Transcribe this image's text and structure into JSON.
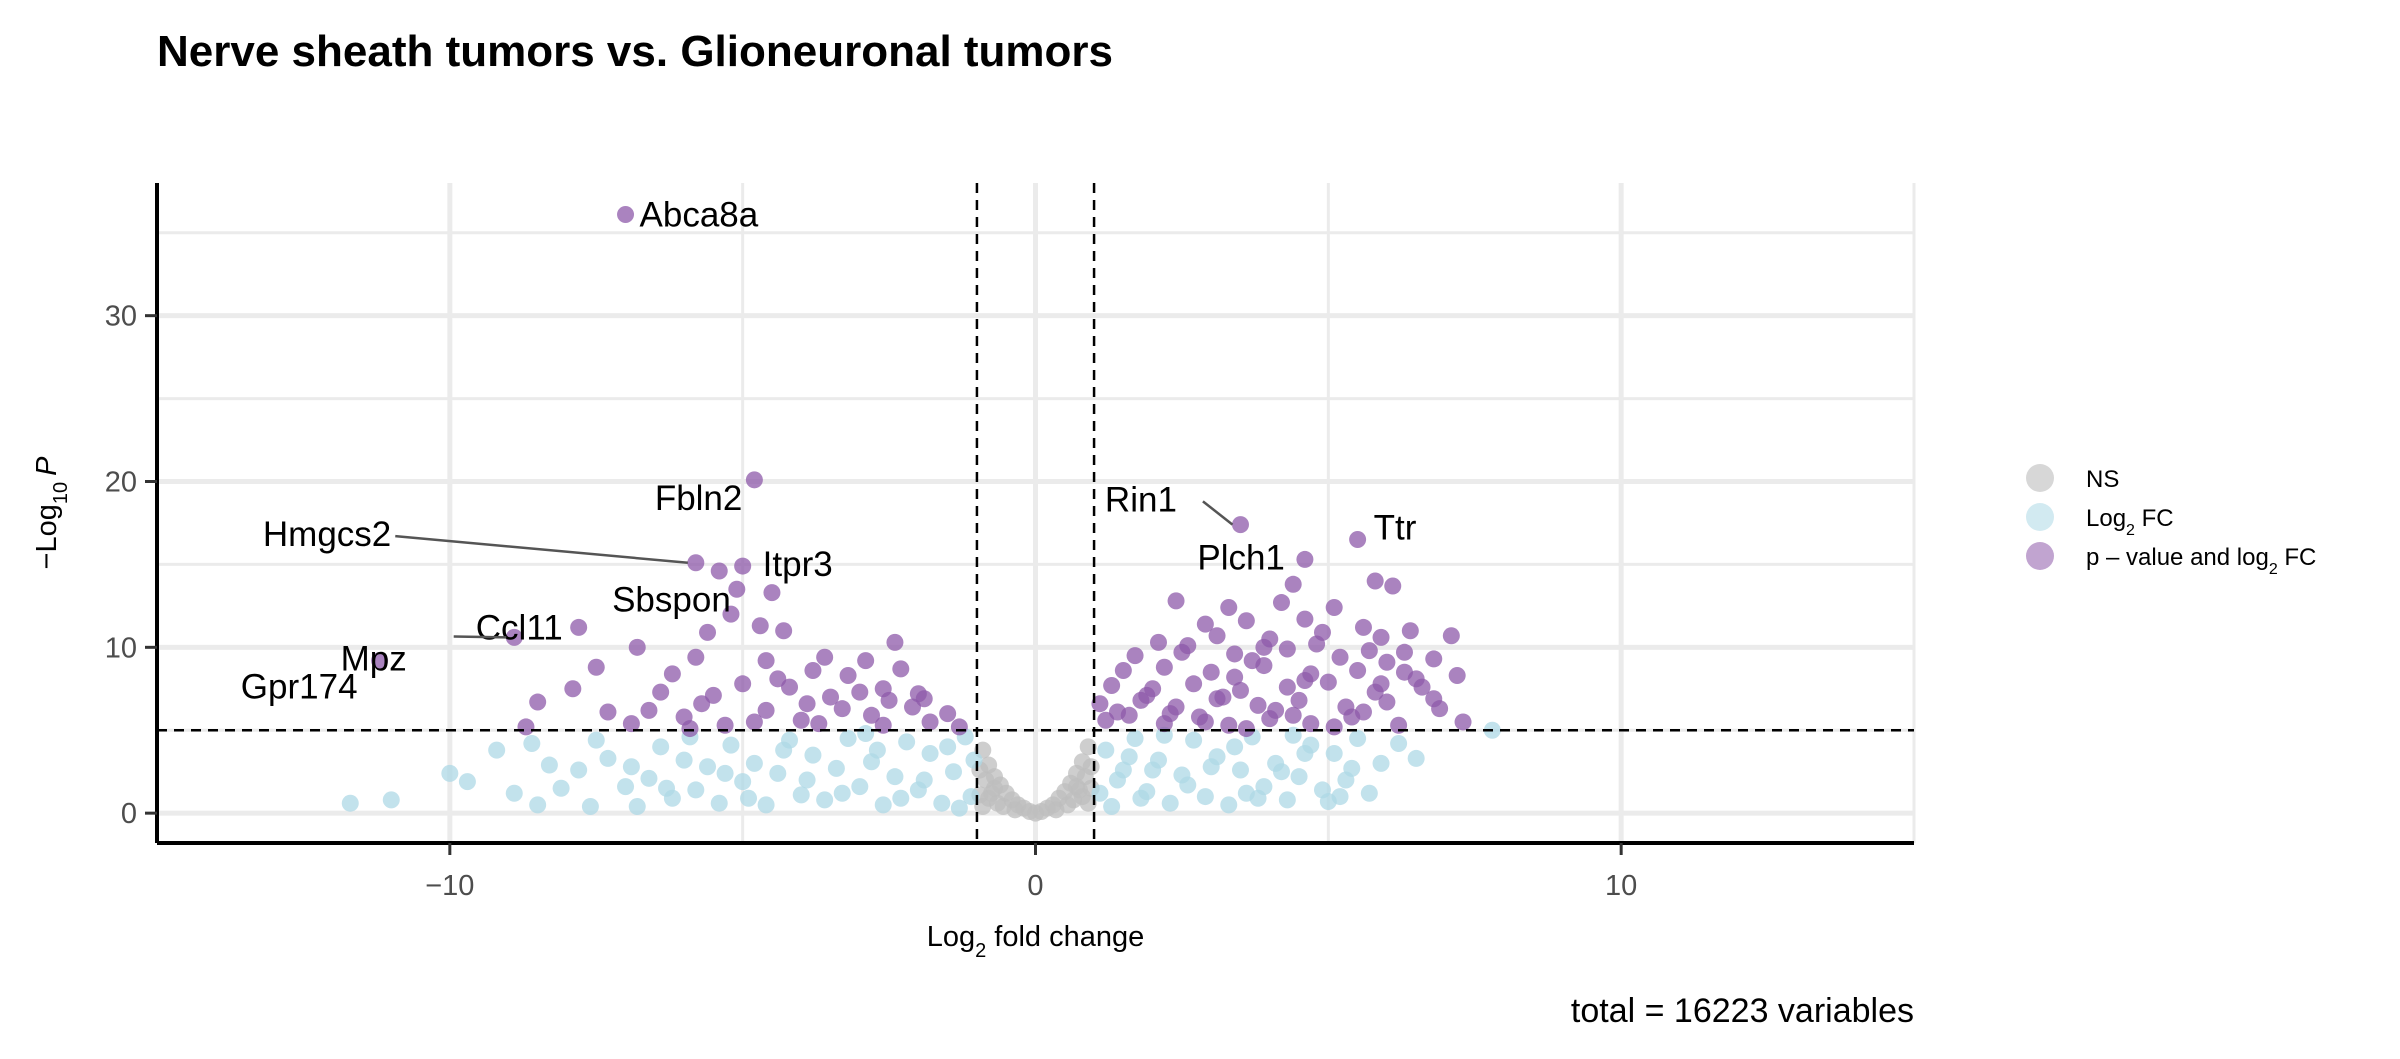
{
  "chart_data": {
    "type": "scatter",
    "title": "Nerve sheath tumors vs. Glioneuronal tumors",
    "xlabel": "Log2 fold change",
    "ylabel": "−Log10 P",
    "caption": "total = 16223 variables",
    "xlim": [
      -15,
      15
    ],
    "ylim": [
      0,
      36.3
    ],
    "x_ticks": [
      -10,
      0,
      10
    ],
    "y_ticks": [
      0,
      10,
      20,
      30
    ],
    "grid": true,
    "fc_cutoff": 1,
    "p_cutoff_neglog10": 5,
    "legend_position": "right",
    "colors": {
      "NS": "#bdbdbd",
      "Log2 FC": "#add8e6",
      "p-value and log2 FC": "#8e5aaa"
    },
    "series": [
      {
        "name": "NS"
      },
      {
        "name": "Log2 FC"
      },
      {
        "name": "p – value and log2 FC"
      }
    ],
    "labeled_points": [
      {
        "gene": "Abca8a",
        "x": -7.0,
        "y": 36.1
      },
      {
        "gene": "Fbln2",
        "x": -4.8,
        "y": 20.1
      },
      {
        "gene": "Hmgcs2",
        "x": -5.8,
        "y": 15.1
      },
      {
        "gene": "Itpr3",
        "x": -5.0,
        "y": 14.9
      },
      {
        "gene": "Sbspon",
        "x": -5.1,
        "y": 13.5
      },
      {
        "gene": "Ccl11",
        "x": -7.8,
        "y": 11.2
      },
      {
        "gene": "Mpz",
        "x": -8.9,
        "y": 10.6
      },
      {
        "gene": "Gpr174",
        "x": -11.2,
        "y": 9.2
      },
      {
        "gene": "Rin1",
        "x": 3.5,
        "y": 17.4
      },
      {
        "gene": "Plch1",
        "x": 4.6,
        "y": 15.3
      },
      {
        "gene": "Ttr",
        "x": 5.5,
        "y": 16.5
      }
    ],
    "points_ns": [
      [
        -0.9,
        3.8
      ],
      [
        -0.8,
        2.9
      ],
      [
        -0.7,
        2.2
      ],
      [
        -0.6,
        1.7
      ],
      [
        -0.5,
        1.2
      ],
      [
        -0.4,
        0.8
      ],
      [
        -0.3,
        0.5
      ],
      [
        -0.2,
        0.3
      ],
      [
        -0.1,
        0.1
      ],
      [
        0.0,
        0.0
      ],
      [
        0.1,
        0.1
      ],
      [
        0.2,
        0.3
      ],
      [
        0.3,
        0.5
      ],
      [
        0.4,
        0.9
      ],
      [
        0.5,
        1.3
      ],
      [
        0.6,
        1.8
      ],
      [
        0.7,
        2.4
      ],
      [
        0.8,
        3.1
      ],
      [
        0.9,
        4.0
      ],
      [
        -0.85,
        2.0
      ],
      [
        -0.75,
        1.2
      ],
      [
        -0.65,
        0.6
      ],
      [
        -0.95,
        1.1
      ],
      [
        -0.55,
        0.4
      ],
      [
        0.55,
        0.5
      ],
      [
        0.65,
        0.8
      ],
      [
        0.75,
        1.4
      ],
      [
        0.85,
        2.2
      ],
      [
        0.95,
        1.5
      ],
      [
        -0.9,
        0.4
      ],
      [
        0.9,
        0.6
      ],
      [
        -0.35,
        0.2
      ],
      [
        0.35,
        0.2
      ],
      [
        -0.8,
        0.9
      ],
      [
        0.8,
        1.0
      ],
      [
        -0.7,
        1.5
      ],
      [
        0.7,
        1.6
      ],
      [
        -0.95,
        2.6
      ],
      [
        0.95,
        2.8
      ]
    ],
    "points_fc": [
      [
        -11.7,
        0.6
      ],
      [
        -11.0,
        0.8
      ],
      [
        -10.0,
        2.4
      ],
      [
        -9.2,
        3.8
      ],
      [
        -8.9,
        1.2
      ],
      [
        -8.6,
        4.2
      ],
      [
        -8.5,
        0.5
      ],
      [
        -8.1,
        1.5
      ],
      [
        -7.8,
        2.6
      ],
      [
        -7.6,
        0.4
      ],
      [
        -7.3,
        3.3
      ],
      [
        -7.0,
        1.6
      ],
      [
        -6.8,
        0.4
      ],
      [
        -6.6,
        2.1
      ],
      [
        -6.4,
        4.0
      ],
      [
        -6.2,
        0.9
      ],
      [
        -6.0,
        3.2
      ],
      [
        -5.8,
        1.4
      ],
      [
        -5.6,
        2.8
      ],
      [
        -5.4,
        0.6
      ],
      [
        -5.2,
        4.1
      ],
      [
        -5.0,
        1.9
      ],
      [
        -4.8,
        3.0
      ],
      [
        -4.6,
        0.5
      ],
      [
        -4.4,
        2.4
      ],
      [
        -4.2,
        4.4
      ],
      [
        -4.0,
        1.1
      ],
      [
        -3.8,
        3.5
      ],
      [
        -3.6,
        0.8
      ],
      [
        -3.4,
        2.7
      ],
      [
        -3.2,
        4.5
      ],
      [
        -3.0,
        1.6
      ],
      [
        -2.8,
        3.1
      ],
      [
        -2.6,
        0.5
      ],
      [
        -2.4,
        2.2
      ],
      [
        -2.2,
        4.3
      ],
      [
        -2.0,
        1.4
      ],
      [
        -1.8,
        3.6
      ],
      [
        -1.6,
        0.6
      ],
      [
        -1.4,
        2.5
      ],
      [
        -1.2,
        4.6
      ],
      [
        -1.1,
        1.0
      ],
      [
        -1.05,
        3.2
      ],
      [
        -6.9,
        2.8
      ],
      [
        -5.9,
        4.6
      ],
      [
        -4.9,
        0.9
      ],
      [
        -3.9,
        2.0
      ],
      [
        -2.9,
        4.8
      ],
      [
        -1.9,
        2.0
      ],
      [
        -1.3,
        0.3
      ],
      [
        -2.3,
        0.9
      ],
      [
        -3.3,
        1.2
      ],
      [
        -4.3,
        3.8
      ],
      [
        -5.3,
        2.4
      ],
      [
        -6.3,
        1.5
      ],
      [
        -7.5,
        4.4
      ],
      [
        -8.3,
        2.9
      ],
      [
        -9.7,
        1.9
      ],
      [
        -1.5,
        4.0
      ],
      [
        -2.7,
        3.8
      ],
      [
        1.1,
        1.2
      ],
      [
        1.2,
        3.8
      ],
      [
        1.3,
        0.4
      ],
      [
        1.5,
        2.6
      ],
      [
        1.7,
        4.5
      ],
      [
        1.9,
        1.3
      ],
      [
        2.1,
        3.2
      ],
      [
        2.3,
        0.6
      ],
      [
        2.5,
        2.3
      ],
      [
        2.7,
        4.4
      ],
      [
        2.9,
        1.0
      ],
      [
        3.1,
        3.4
      ],
      [
        3.3,
        0.5
      ],
      [
        3.5,
        2.6
      ],
      [
        3.7,
        4.6
      ],
      [
        3.9,
        1.6
      ],
      [
        4.1,
        3.0
      ],
      [
        4.3,
        0.8
      ],
      [
        4.5,
        2.2
      ],
      [
        4.7,
        4.1
      ],
      [
        4.9,
        1.4
      ],
      [
        5.1,
        3.6
      ],
      [
        5.3,
        2.0
      ],
      [
        5.5,
        4.5
      ],
      [
        5.7,
        1.2
      ],
      [
        5.9,
        3.0
      ],
      [
        6.2,
        4.2
      ],
      [
        6.5,
        3.3
      ],
      [
        7.8,
        5.0
      ],
      [
        1.4,
        2.0
      ],
      [
        1.8,
        0.9
      ],
      [
        2.2,
        4.7
      ],
      [
        2.6,
        1.7
      ],
      [
        3.0,
        2.8
      ],
      [
        3.4,
        4.0
      ],
      [
        3.8,
        0.9
      ],
      [
        4.2,
        2.5
      ],
      [
        4.6,
        3.6
      ],
      [
        5.0,
        0.7
      ],
      [
        5.4,
        2.7
      ],
      [
        5.2,
        1.0
      ],
      [
        2.0,
        2.6
      ],
      [
        1.6,
        3.4
      ],
      [
        4.4,
        4.7
      ],
      [
        3.6,
        1.2
      ]
    ],
    "points_sig": [
      [
        -7.0,
        36.1
      ],
      [
        -4.8,
        20.1
      ],
      [
        -5.8,
        15.1
      ],
      [
        -5.0,
        14.9
      ],
      [
        -5.1,
        13.5
      ],
      [
        -7.8,
        11.2
      ],
      [
        -8.9,
        10.6
      ],
      [
        -11.2,
        9.2
      ],
      [
        -5.4,
        14.6
      ],
      [
        -4.5,
        13.3
      ],
      [
        -5.2,
        12.0
      ],
      [
        -6.8,
        10.0
      ],
      [
        -5.8,
        9.4
      ],
      [
        -4.7,
        11.3
      ],
      [
        -4.3,
        11.0
      ],
      [
        -7.5,
        8.8
      ],
      [
        -6.2,
        8.4
      ],
      [
        -5.6,
        10.9
      ],
      [
        -4.6,
        9.2
      ],
      [
        -3.8,
        8.6
      ],
      [
        -3.2,
        8.3
      ],
      [
        -2.4,
        10.3
      ],
      [
        -2.3,
        8.7
      ],
      [
        -2.6,
        7.5
      ],
      [
        -3.5,
        7.0
      ],
      [
        -4.2,
        7.6
      ],
      [
        -5.0,
        7.8
      ],
      [
        -5.7,
        6.6
      ],
      [
        -6.4,
        7.3
      ],
      [
        -7.3,
        6.1
      ],
      [
        -7.9,
        7.5
      ],
      [
        -8.5,
        6.7
      ],
      [
        -8.7,
        5.2
      ],
      [
        -6.9,
        5.4
      ],
      [
        -6.0,
        5.8
      ],
      [
        -5.3,
        5.3
      ],
      [
        -4.6,
        6.2
      ],
      [
        -4.0,
        5.6
      ],
      [
        -3.3,
        6.3
      ],
      [
        -2.8,
        5.9
      ],
      [
        -2.1,
        6.4
      ],
      [
        -1.8,
        5.5
      ],
      [
        -1.5,
        6.0
      ],
      [
        -1.3,
        5.2
      ],
      [
        -2.6,
        5.3
      ],
      [
        -3.7,
        5.4
      ],
      [
        -4.8,
        5.5
      ],
      [
        -5.9,
        5.1
      ],
      [
        -3.0,
        7.3
      ],
      [
        -2.0,
        7.2
      ],
      [
        -4.4,
        8.1
      ],
      [
        -3.6,
        9.4
      ],
      [
        -2.9,
        9.2
      ],
      [
        -2.5,
        6.8
      ],
      [
        -1.9,
        6.9
      ],
      [
        -5.5,
        7.1
      ],
      [
        -6.6,
        6.2
      ],
      [
        -3.9,
        6.6
      ],
      [
        3.5,
        17.4
      ],
      [
        4.6,
        15.3
      ],
      [
        5.5,
        16.5
      ],
      [
        4.4,
        13.8
      ],
      [
        5.8,
        14.0
      ],
      [
        6.1,
        13.7
      ],
      [
        2.4,
        12.8
      ],
      [
        3.3,
        12.4
      ],
      [
        4.2,
        12.7
      ],
      [
        5.1,
        12.4
      ],
      [
        2.9,
        11.4
      ],
      [
        3.6,
        11.6
      ],
      [
        4.6,
        11.7
      ],
      [
        5.6,
        11.2
      ],
      [
        6.4,
        11.0
      ],
      [
        7.1,
        10.7
      ],
      [
        2.1,
        10.3
      ],
      [
        3.1,
        10.7
      ],
      [
        4.0,
        10.5
      ],
      [
        4.9,
        10.9
      ],
      [
        5.9,
        10.6
      ],
      [
        1.7,
        9.5
      ],
      [
        2.5,
        9.7
      ],
      [
        3.4,
        9.6
      ],
      [
        4.3,
        9.9
      ],
      [
        5.2,
        9.4
      ],
      [
        6.0,
        9.1
      ],
      [
        6.8,
        9.3
      ],
      [
        1.5,
        8.6
      ],
      [
        2.2,
        8.8
      ],
      [
        3.0,
        8.5
      ],
      [
        3.9,
        8.9
      ],
      [
        4.7,
        8.4
      ],
      [
        5.5,
        8.6
      ],
      [
        6.3,
        8.5
      ],
      [
        7.2,
        8.3
      ],
      [
        1.3,
        7.7
      ],
      [
        2.0,
        7.5
      ],
      [
        2.7,
        7.8
      ],
      [
        3.5,
        7.4
      ],
      [
        4.3,
        7.6
      ],
      [
        5.0,
        7.9
      ],
      [
        5.8,
        7.3
      ],
      [
        6.6,
        7.6
      ],
      [
        1.1,
        6.6
      ],
      [
        1.8,
        6.8
      ],
      [
        2.4,
        6.4
      ],
      [
        3.1,
        6.9
      ],
      [
        3.8,
        6.5
      ],
      [
        4.5,
        6.8
      ],
      [
        5.3,
        6.4
      ],
      [
        6.0,
        6.7
      ],
      [
        6.9,
        6.3
      ],
      [
        1.2,
        5.6
      ],
      [
        1.6,
        5.9
      ],
      [
        2.2,
        5.4
      ],
      [
        2.8,
        5.8
      ],
      [
        3.3,
        5.3
      ],
      [
        4.0,
        5.7
      ],
      [
        4.7,
        5.4
      ],
      [
        5.4,
        5.8
      ],
      [
        6.2,
        5.3
      ],
      [
        7.3,
        5.5
      ],
      [
        2.6,
        10.1
      ],
      [
        3.7,
        9.2
      ],
      [
        4.8,
        10.2
      ],
      [
        5.7,
        9.8
      ],
      [
        6.5,
        8.1
      ],
      [
        1.9,
        7.1
      ],
      [
        3.2,
        7.0
      ],
      [
        4.1,
        6.2
      ],
      [
        5.6,
        6.1
      ],
      [
        6.8,
        6.9
      ],
      [
        2.9,
        5.5
      ],
      [
        3.6,
        5.1
      ],
      [
        4.4,
        5.9
      ],
      [
        5.1,
        5.2
      ],
      [
        1.4,
        6.1
      ],
      [
        2.3,
        6.0
      ],
      [
        3.4,
        8.2
      ],
      [
        4.6,
        8.0
      ],
      [
        5.9,
        7.8
      ],
      [
        6.3,
        9.7
      ],
      [
        3.9,
        10.0
      ]
    ]
  },
  "legend": {
    "items": [
      {
        "label_pre": "NS",
        "label_sub": "",
        "label_post": "",
        "color": "#bdbdbd"
      },
      {
        "label_pre": "Log",
        "label_sub": "2",
        "label_post": " FC",
        "color": "#add8e6"
      },
      {
        "label_pre": "p – value and log",
        "label_sub": "2",
        "label_post": " FC",
        "color": "#8e5aaa"
      }
    ]
  },
  "axis_text": {
    "x_pre": "Log",
    "x_sub": "2",
    "x_post": " fold change",
    "y_pre": "−Log",
    "y_sub": "10",
    "y_post": "P"
  }
}
